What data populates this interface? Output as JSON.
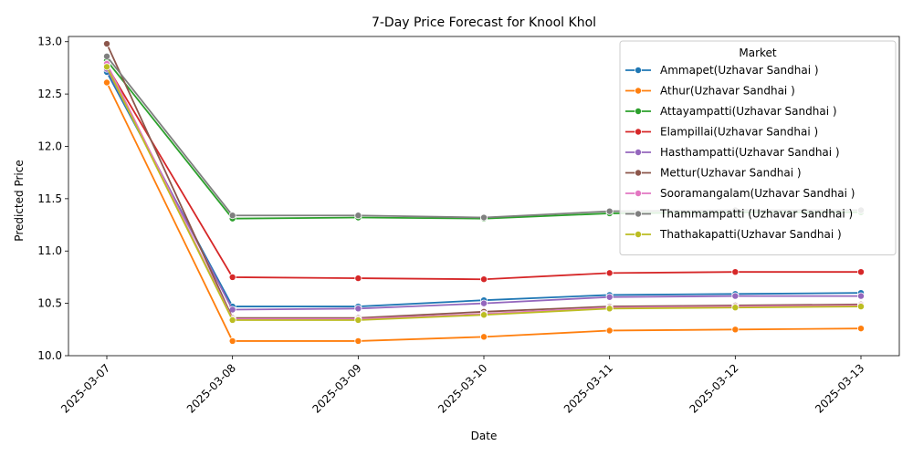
{
  "chart_data": {
    "type": "line",
    "title": "7-Day Price Forecast for Knool Khol",
    "xlabel": "Date",
    "ylabel": "Predicted Price",
    "categories": [
      "2025-03-07",
      "2025-03-08",
      "2025-03-09",
      "2025-03-10",
      "2025-03-11",
      "2025-03-12",
      "2025-03-13"
    ],
    "ylim": [
      10.0,
      13.05
    ],
    "yticks": [
      "10.0",
      "10.5",
      "11.0",
      "11.5",
      "12.0",
      "12.5",
      "13.0"
    ],
    "legend": {
      "title": "Market",
      "position": "top-right"
    },
    "series": [
      {
        "name": "Ammapet(Uzhavar Sandhai )",
        "color": "#1f77b4",
        "values": [
          12.71,
          10.47,
          10.47,
          10.53,
          10.58,
          10.59,
          10.6
        ]
      },
      {
        "name": "Athur(Uzhavar Sandhai )",
        "color": "#ff7f0e",
        "values": [
          12.61,
          10.14,
          10.14,
          10.18,
          10.24,
          10.25,
          10.26
        ]
      },
      {
        "name": "Attayampatti(Uzhavar Sandhai )",
        "color": "#2ca02c",
        "values": [
          12.82,
          11.31,
          11.32,
          11.31,
          11.36,
          11.37,
          11.37
        ]
      },
      {
        "name": "Elampillai(Uzhavar Sandhai )",
        "color": "#d62728",
        "values": [
          12.77,
          10.75,
          10.74,
          10.73,
          10.79,
          10.8,
          10.8
        ]
      },
      {
        "name": "Hasthampatti(Uzhavar Sandhai )",
        "color": "#9467bd",
        "values": [
          12.74,
          10.44,
          10.45,
          10.5,
          10.56,
          10.57,
          10.57
        ]
      },
      {
        "name": "Mettur(Uzhavar Sandhai )",
        "color": "#8c564b",
        "values": [
          12.98,
          10.36,
          10.36,
          10.42,
          10.47,
          10.48,
          10.49
        ]
      },
      {
        "name": "Sooramangalam(Uzhavar Sandhai )",
        "color": "#e377c2",
        "values": [
          12.79,
          10.35,
          10.35,
          10.4,
          10.46,
          10.47,
          10.48
        ]
      },
      {
        "name": "Thammampatti (Uzhavar Sandhai )",
        "color": "#7f7f7f",
        "values": [
          12.86,
          11.34,
          11.34,
          11.32,
          11.38,
          11.39,
          11.39
        ]
      },
      {
        "name": "Thathakapatti(Uzhavar Sandhai )",
        "color": "#bcbd22",
        "values": [
          12.76,
          10.34,
          10.34,
          10.39,
          10.45,
          10.46,
          10.47
        ]
      }
    ]
  }
}
